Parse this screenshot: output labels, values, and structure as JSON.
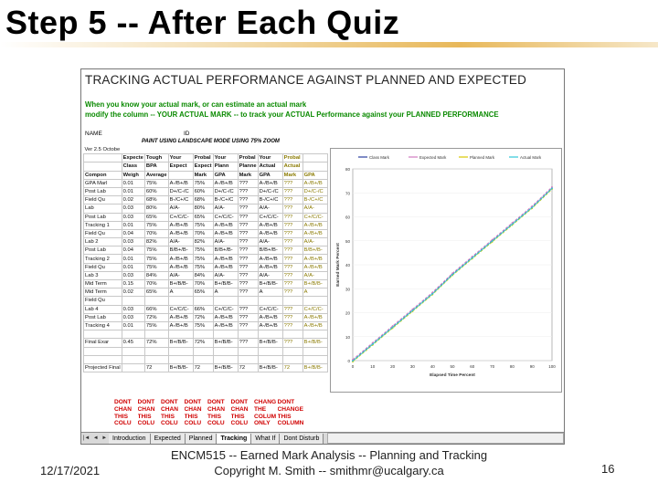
{
  "slide": {
    "title": "Step 5 -- After Each Quiz",
    "date": "12/17/2021",
    "footer_line1": "ENCM515 -- Earned Mark Analysis -- Planning and Tracking",
    "footer_line2": "Copyright M. Smith -- smithmr@ucalgary.ca",
    "page_number": "16"
  },
  "sheet": {
    "title": "TRACKING ACTUAL PERFORMANCE AGAINST PLANNED AND EXPECTED",
    "note1": "When you know your actual mark, or can estimate an actual mark",
    "note2": "modify the column -- YOUR ACTUAL MARK -- to track your ACTUAL Performance against your PLANNED PERFORMANCE",
    "name_label": "NAME",
    "id_label": "ID",
    "paint_note": "PAINT USING LANDSCAPE MODE USING 75% ZOOM",
    "version": "Ver 2.5 Octobe",
    "header_rows": [
      [
        "",
        "Expecte",
        "Tough",
        "Your",
        "Probal",
        "Your",
        "Probal",
        "Your",
        "Probal"
      ],
      [
        "",
        "Class",
        "BPA",
        "Expect",
        "Expect",
        "Plann",
        "Planne",
        "Actual",
        "Actual"
      ],
      [
        "Compon",
        "Weigh",
        "Average",
        "",
        "Mark",
        "GPA",
        "Mark",
        "GPA",
        "Mark",
        "GPA"
      ]
    ],
    "rows": [
      [
        "GPA Marl",
        "0.01",
        "75%",
        "A-/B+/B",
        "75%",
        "A-/B+/B",
        "???",
        "A-/B+/B",
        "???",
        "A-/B+/B"
      ],
      [
        "Post Lab",
        "0.01",
        "60%",
        "D+/C-/C",
        "60%",
        "D+/C-/C",
        "???",
        "D+/C-/C",
        "???",
        "D+/C-/C"
      ],
      [
        "Field Qu",
        "0.02",
        "68%",
        "B-/C+/C",
        "68%",
        "B-/C+/C",
        "???",
        "B-/C+/C",
        "???",
        "B-/C+/C"
      ],
      [
        "Lab",
        "0.03",
        "80%",
        "A/A-",
        "80%",
        "A/A-",
        "???",
        "A/A-",
        "???",
        "A/A-"
      ],
      [
        "Post Lab",
        "0.03",
        "65%",
        "C+/C/C-",
        "65%",
        "C+/C/C-",
        "???",
        "C+/C/C-",
        "???",
        "C+/C/C-"
      ],
      [
        "Tracking 1",
        "0.01",
        "75%",
        "A-/B+/B",
        "75%",
        "A-/B+/B",
        "???",
        "A-/B+/B",
        "???",
        "A-/B+/B"
      ],
      [
        "Field Qu",
        "0.04",
        "70%",
        "A-/B+/B",
        "70%",
        "A-/B+/B",
        "???",
        "A-/B+/B",
        "???",
        "A-/B+/B"
      ],
      [
        "Lab 2",
        "0.03",
        "82%",
        "A/A-",
        "82%",
        "A/A-",
        "???",
        "A/A-",
        "???",
        "A/A-"
      ],
      [
        "Post Lab",
        "0.04",
        "75%",
        "B/B+/B-",
        "75%",
        "B/B+/B-",
        "???",
        "B/B+/B-",
        "???",
        "B/B+/B-"
      ],
      [
        "Tracking 2",
        "0.01",
        "75%",
        "A-/B+/B",
        "75%",
        "A-/B+/B",
        "???",
        "A-/B+/B",
        "???",
        "A-/B+/B"
      ],
      [
        "Field Qu",
        "0.01",
        "75%",
        "A-/B+/B",
        "75%",
        "A-/B+/B",
        "???",
        "A-/B+/B",
        "???",
        "A-/B+/B"
      ],
      [
        "Lab 3",
        "0.03",
        "84%",
        "A/A-",
        "84%",
        "A/A-",
        "???",
        "A/A-",
        "???",
        "A/A-"
      ],
      [
        "Mid Term",
        "0.15",
        "70%",
        "B+/B/B-",
        "70%",
        "B+/B/B-",
        "???",
        "B+/B/B-",
        "???",
        "B+/B/B-"
      ],
      [
        "Mid Term",
        "0.02",
        "65%",
        "A",
        "65%",
        "A",
        "???",
        "A",
        "???",
        "A"
      ],
      [
        "Field Qu",
        "",
        "",
        "",
        "",
        "",
        "",
        "",
        "",
        ""
      ],
      [
        "Lab 4",
        "0.03",
        "66%",
        "C+/C/C-",
        "66%",
        "C+/C/C-",
        "???",
        "C+/C/C-",
        "???",
        "C+/C/C-"
      ],
      [
        "Post Lab",
        "0.03",
        "72%",
        "A-/B+/B",
        "72%",
        "A-/B+/B",
        "???",
        "A-/B+/B",
        "???",
        "A-/B+/B"
      ],
      [
        "Tracking 4",
        "0.01",
        "75%",
        "A-/B+/B",
        "75%",
        "A-/B+/B",
        "???",
        "A-/B+/B",
        "???",
        "A-/B+/B"
      ],
      [
        "",
        "",
        "",
        "",
        "",
        "",
        "",
        "",
        "",
        ""
      ],
      [
        "Final Exar",
        "0.45",
        "72%",
        "B+/B/B-",
        "72%",
        "B+/B/B-",
        "???",
        "B+/B/B-",
        "???",
        "B+/B/B-"
      ],
      [
        "",
        "",
        "",
        "",
        "",
        "",
        "",
        "",
        "",
        ""
      ],
      [
        "",
        "",
        "",
        "",
        "",
        "",
        "",
        "",
        "",
        ""
      ],
      [
        "Projected Final",
        "",
        "72",
        "B+/B/B-",
        "72",
        "B+/B/B-",
        "72",
        "B+/B/B-",
        "72",
        "B+/B/B-"
      ]
    ],
    "red_rows": [
      [
        "DONT",
        "DONT",
        "DONT",
        "DONT",
        "DONT",
        "DONT",
        "CHANG",
        "DONT"
      ],
      [
        "CHAN",
        "CHAN",
        "CHAN",
        "CHAN",
        "CHAN",
        "CHAN",
        "THE",
        "CHANGE"
      ],
      [
        "THIS",
        "THIS",
        "THIS",
        "THIS",
        "THIS",
        "THIS",
        "COLUM",
        "THIS"
      ],
      [
        "COLU",
        "COLU",
        "COLU",
        "COLU",
        "COLU",
        "COLU",
        "ONLY",
        "COLUMN"
      ]
    ],
    "tabs": [
      "Introduction",
      "Expected",
      "Planned",
      "Tracking",
      "What If",
      "Dont Disturb"
    ],
    "active_tab": "Tracking"
  },
  "chart_data": {
    "type": "line",
    "title": "",
    "xlabel": "Elapsed Time Percent",
    "ylabel": "Earned Mark Percent",
    "legend_position": "top",
    "series": [
      {
        "name": "Class Mark",
        "color": "#2a3fa0"
      },
      {
        "name": "Expected Mark",
        "color": "#d07cc0"
      },
      {
        "name": "Planned Mark",
        "color": "#d8c800"
      },
      {
        "name": "Actual Mark",
        "color": "#30c8d8"
      }
    ],
    "x": [
      0,
      10,
      20,
      30,
      40,
      50,
      60,
      70,
      80,
      90,
      100
    ],
    "y": [
      0,
      7,
      14,
      21,
      28,
      36,
      43,
      50,
      57,
      64,
      72
    ],
    "xlim": [
      0,
      100
    ],
    "ylim": [
      0,
      80
    ],
    "x_ticks": [
      "0",
      "10",
      "20",
      "30",
      "40",
      "50",
      "60",
      "70",
      "80",
      "90",
      "100"
    ],
    "y_ticks": [
      "0",
      "10",
      "20",
      "30",
      "40",
      "50",
      "60",
      "70",
      "80"
    ],
    "grid": true
  }
}
